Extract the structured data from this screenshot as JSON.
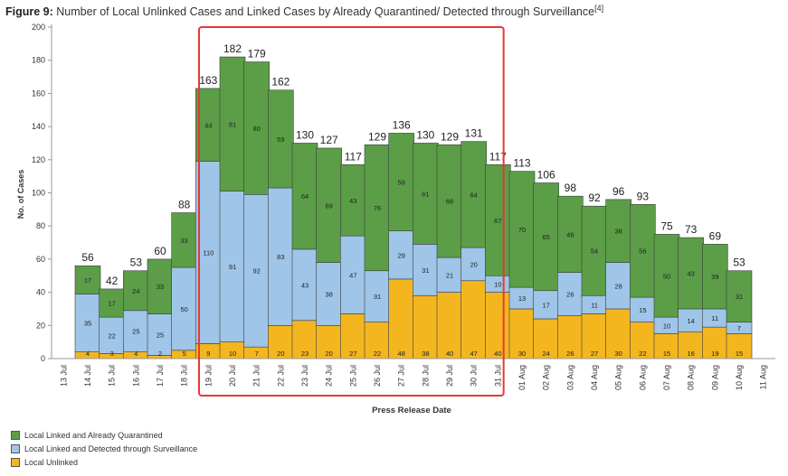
{
  "figure": {
    "label": "Figure 9:",
    "title": "Number of Local Unlinked Cases and Linked Cases by Already Quarantined/ Detected through Surveillance",
    "ref": "[4]"
  },
  "chart_data": {
    "type": "bar",
    "stacked": true,
    "xlabel": "Press Release Date",
    "ylabel": "No. of Cases",
    "ylim": [
      0,
      200
    ],
    "yticks": [
      0,
      20,
      40,
      60,
      80,
      100,
      120,
      140,
      160,
      180,
      200
    ],
    "grid": false,
    "legend_position": "bottom-left",
    "x_tick_labels": [
      "13 Jul",
      "14 Jul",
      "15 Jul",
      "16 Jul",
      "17 Jul",
      "18 Jul",
      "19 Jul",
      "20 Jul",
      "21 Jul",
      "22 Jul",
      "23 Jul",
      "24 Jul",
      "25 Jul",
      "26 Jul",
      "27 Jul",
      "28 Jul",
      "29 Jul",
      "30 Jul",
      "31 Jul",
      "01 Aug",
      "02 Aug",
      "03 Aug",
      "04 Aug",
      "05 Aug",
      "06 Aug",
      "07 Aug",
      "08 Aug",
      "09 Aug",
      "10 Aug",
      "11 Aug"
    ],
    "categories": [
      "14 Jul",
      "15 Jul",
      "16 Jul",
      "17 Jul",
      "18 Jul",
      "19 Jul",
      "20 Jul",
      "21 Jul",
      "22 Jul",
      "23 Jul",
      "24 Jul",
      "25 Jul",
      "26 Jul",
      "27 Jul",
      "28 Jul",
      "29 Jul",
      "30 Jul",
      "31 Jul",
      "01 Aug",
      "02 Aug",
      "03 Aug",
      "04 Aug",
      "05 Aug",
      "06 Aug",
      "07 Aug",
      "08 Aug",
      "09 Aug",
      "10 Aug"
    ],
    "series": [
      {
        "name": "Local Unlinked",
        "color": "#f3b61f",
        "values": [
          4,
          3,
          4,
          2,
          5,
          9,
          10,
          7,
          20,
          23,
          20,
          27,
          22,
          48,
          38,
          40,
          47,
          40,
          30,
          24,
          26,
          27,
          30,
          22,
          15,
          16,
          19,
          15
        ]
      },
      {
        "name": "Local Linked and Detected through Surveillance",
        "color": "#9fc5e8",
        "values": [
          35,
          22,
          25,
          25,
          50,
          110,
          91,
          92,
          83,
          43,
          38,
          47,
          31,
          29,
          31,
          21,
          20,
          10,
          13,
          17,
          26,
          11,
          28,
          15,
          10,
          14,
          11,
          7
        ]
      },
      {
        "name": "Local Linked and Already Quarantined",
        "color": "#5b9e47",
        "values": [
          17,
          17,
          24,
          33,
          33,
          44,
          81,
          80,
          59,
          64,
          69,
          43,
          76,
          59,
          61,
          68,
          64,
          67,
          70,
          65,
          46,
          54,
          38,
          56,
          50,
          43,
          39,
          31
        ]
      }
    ],
    "totals": [
      56,
      42,
      53,
      60,
      88,
      163,
      182,
      179,
      162,
      130,
      127,
      117,
      129,
      136,
      130,
      129,
      131,
      117,
      113,
      106,
      98,
      92,
      96,
      93,
      75,
      73,
      69,
      53
    ],
    "highlight": {
      "from": "19 Jul",
      "to": "31 Jul",
      "color": "#e53935"
    }
  }
}
